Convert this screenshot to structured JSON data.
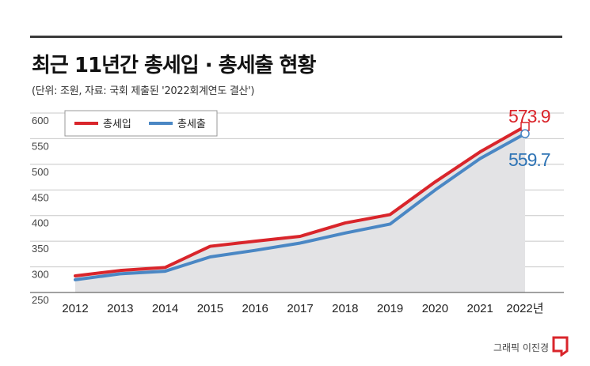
{
  "header": {
    "title": "최근 11년간 총세입 · 총세출 현황",
    "subtitle": "(단위: 조원, 자료: 국회 제출된 '2022회계연도 결산')"
  },
  "footer": {
    "credit": "그래픽 이진경"
  },
  "colors": {
    "revenue": "#d9252b",
    "expenditure": "#4a87c4",
    "area": "#e3e3e5",
    "grid": "#c8c8c8"
  },
  "chart_data": {
    "type": "line",
    "title": "최근 11년간 총세입 · 총세출 현황",
    "categories": [
      "2012",
      "2013",
      "2014",
      "2015",
      "2016",
      "2017",
      "2018",
      "2019",
      "2020",
      "2021",
      "2022년"
    ],
    "series": [
      {
        "name": "총세입",
        "values": [
          282.4,
          292.9,
          298.8,
          340.1,
          350.1,
          359.5,
          385.6,
          402.0,
          465.6,
          524.2,
          573.9
        ]
      },
      {
        "name": "총세출",
        "values": [
          274.8,
          286.4,
          291.5,
          319.4,
          332.2,
          346.4,
          365.9,
          383.5,
          449.8,
          511.2,
          559.7
        ]
      }
    ],
    "end_labels": [
      "573.9",
      "559.7"
    ],
    "y_ticks": [
      "250",
      "300",
      "350",
      "400",
      "450",
      "500",
      "550",
      "600"
    ],
    "ylim": [
      250,
      600
    ],
    "legend": "top-left",
    "grid": true
  }
}
